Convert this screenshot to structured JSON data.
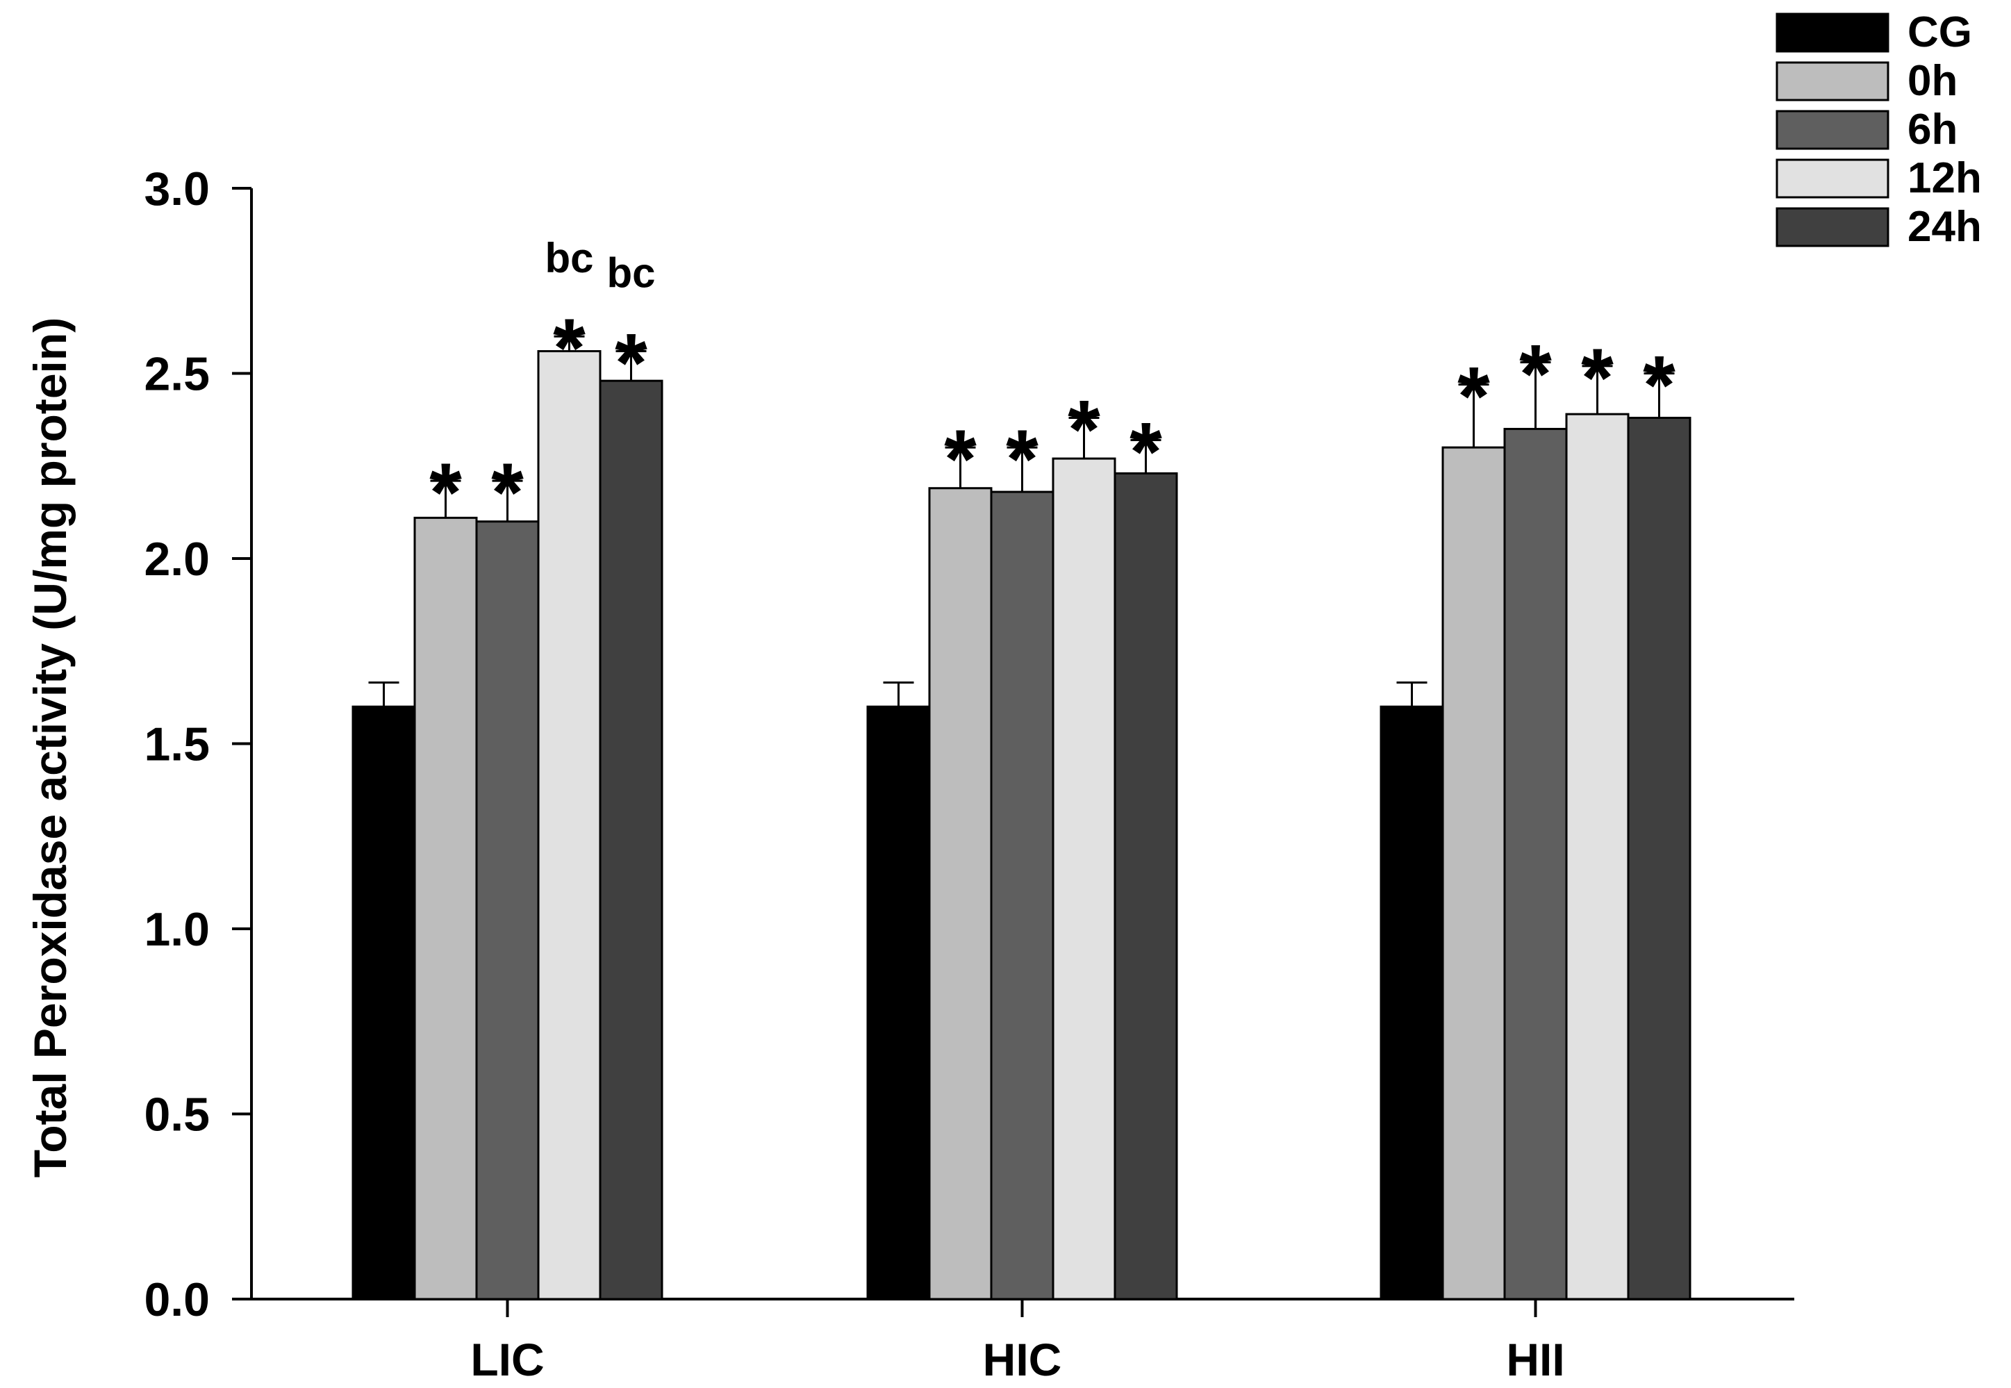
{
  "chart_data": {
    "type": "bar",
    "title": "",
    "xlabel": "",
    "ylabel": "Total Peroxidase activity (U/mg protein)",
    "ylim": [
      0,
      3.0
    ],
    "yticks": [
      "0.0",
      "0.5",
      "1.0",
      "1.5",
      "2.0",
      "2.5",
      "3.0"
    ],
    "categories": [
      "LIC",
      "HIC",
      "HII"
    ],
    "grid": false,
    "legend_position": "top-right",
    "series": [
      {
        "name": "CG",
        "color": "#000000",
        "values": [
          1.6,
          1.6,
          1.6
        ],
        "errors": [
          0.065,
          0.065,
          0.065
        ],
        "annotations": [
          "",
          "",
          ""
        ]
      },
      {
        "name": "0h",
        "color": "#bdbdbd",
        "values": [
          2.11,
          2.19,
          2.3
        ],
        "errors": [
          0.1,
          0.11,
          0.17
        ],
        "annotations": [
          "*",
          "*",
          "*"
        ]
      },
      {
        "name": "6h",
        "color": "#5f5f5f",
        "values": [
          2.1,
          2.18,
          2.35
        ],
        "errors": [
          0.11,
          0.12,
          0.18
        ],
        "annotations": [
          "*",
          "*",
          "*"
        ]
      },
      {
        "name": "12h",
        "color": "#e1e1e1",
        "values": [
          2.56,
          2.27,
          2.39
        ],
        "errors": [
          0.04,
          0.11,
          0.13
        ],
        "annotations": [
          "bc*",
          "*",
          "*"
        ]
      },
      {
        "name": "24h",
        "color": "#404040",
        "values": [
          2.48,
          2.23,
          2.38
        ],
        "errors": [
          0.08,
          0.09,
          0.12
        ],
        "annotations": [
          "bc*",
          "*",
          "*"
        ]
      }
    ]
  }
}
